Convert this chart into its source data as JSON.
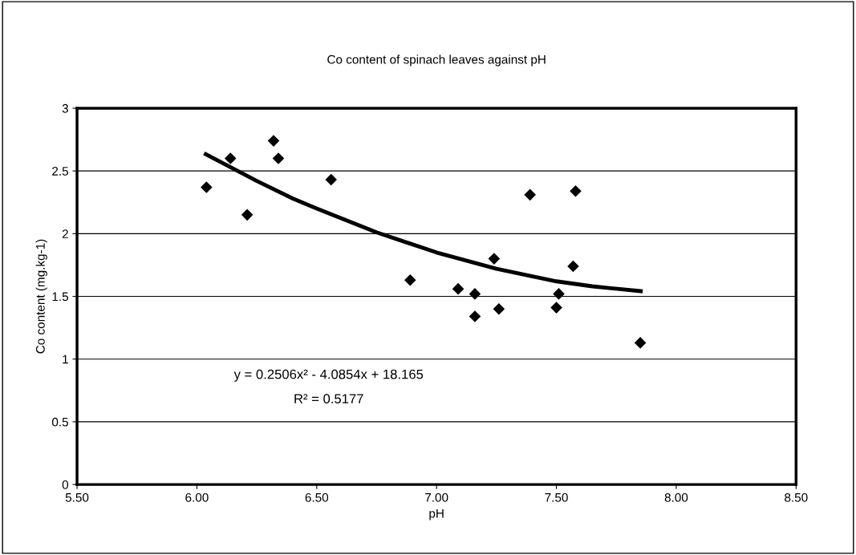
{
  "chart_data": {
    "type": "scatter",
    "title": "Co content of spinach leaves against pH",
    "xlabel": "pH",
    "ylabel": "Co content (mg.kg-1)",
    "series": [
      {
        "color": "#000000",
        "marker": "diamond",
        "x": [
          6.04,
          6.14,
          6.21,
          6.32,
          6.34,
          6.56,
          6.89,
          7.09,
          7.16,
          7.16,
          7.24,
          7.26,
          7.39,
          7.51,
          7.5,
          7.58,
          7.57,
          7.85
        ],
        "values": [
          2.37,
          2.6,
          2.15,
          2.74,
          2.6,
          2.43,
          1.63,
          1.56,
          1.52,
          1.34,
          1.8,
          1.4,
          2.31,
          1.52,
          1.41,
          2.34,
          1.74,
          1.13
        ]
      },
      {
        "type": "line",
        "color": "#000000",
        "marker": "none",
        "line_style": "solid",
        "x": [
          6.03,
          6.25,
          6.4,
          6.5,
          6.75,
          7.0,
          7.25,
          7.5,
          7.65,
          7.86
        ],
        "values": [
          2.64,
          2.42,
          2.28,
          2.2,
          2.01,
          1.85,
          1.72,
          1.62,
          1.58,
          1.54
        ]
      }
    ],
    "xlim": [
      5.5,
      8.5
    ],
    "xticks": [
      {
        "value": 5.5,
        "label": "5.50"
      },
      {
        "value": 6.0,
        "label": "6.00"
      },
      {
        "value": 6.5,
        "label": "6.50"
      },
      {
        "value": 7.0,
        "label": "7.00"
      },
      {
        "value": 7.5,
        "label": "7.50"
      },
      {
        "value": 8.0,
        "label": "8.00"
      },
      {
        "value": 8.5,
        "label": "8.50"
      }
    ],
    "ylim": [
      0,
      3
    ],
    "yticks": [
      0,
      0.5,
      1,
      1.5,
      2,
      2.5,
      3
    ],
    "grid": "y",
    "legend": false,
    "annotations": [
      "y = 0.2506x² - 4.0854x + 18.165",
      "R² = 0.5177"
    ]
  }
}
